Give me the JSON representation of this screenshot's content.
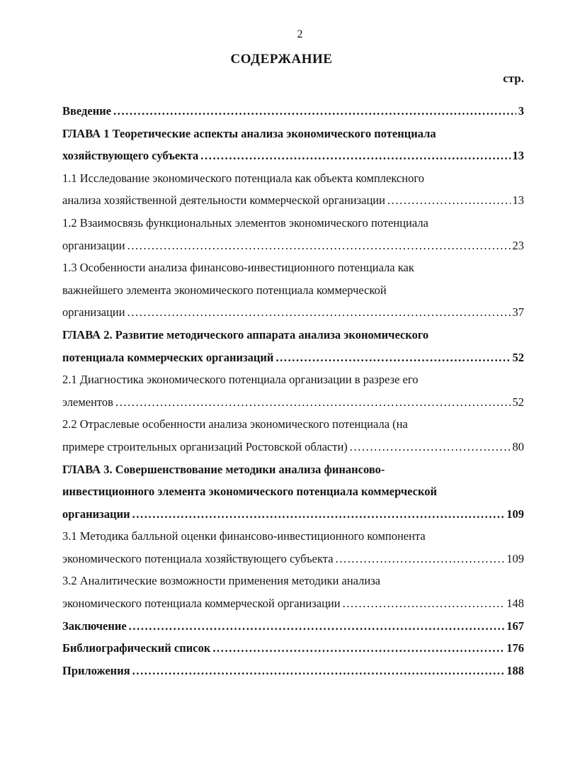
{
  "page": {
    "number": "2",
    "title": "СОДЕРЖАНИЕ",
    "column_label": "стр."
  },
  "colors": {
    "text": "#141414",
    "background": "#ffffff"
  },
  "toc": {
    "entries": [
      {
        "bold": true,
        "lines": [
          "Введение"
        ],
        "page": "3"
      },
      {
        "bold": true,
        "lines": [
          "ГЛАВА 1 Теоретические аспекты анализа экономического потенциала",
          "хозяйствующего субъекта"
        ],
        "page": "13"
      },
      {
        "bold": false,
        "lines": [
          "1.1 Исследование экономического потенциала как объекта комплексного",
          "анализа хозяйственной деятельности коммерческой организации"
        ],
        "page": "13"
      },
      {
        "bold": false,
        "lines": [
          "1.2 Взаимосвязь функциональных элементов экономического потенциала",
          "организации"
        ],
        "page": "23"
      },
      {
        "bold": false,
        "lines": [
          "1.3 Особенности анализа финансово-инвестиционного потенциала как",
          "важнейшего элемента экономического потенциала коммерческой",
          "организации"
        ],
        "page": "37"
      },
      {
        "bold": true,
        "lines": [
          "ГЛАВА 2. Развитие методического аппарата анализа экономического",
          "потенциала коммерческих организаций"
        ],
        "page": "52"
      },
      {
        "bold": false,
        "lines": [
          "2.1 Диагностика экономического потенциала организации в разрезе его",
          "элементов"
        ],
        "page": "52"
      },
      {
        "bold": false,
        "lines": [
          "2.2 Отраслевые особенности анализа экономического потенциала (на",
          "примере строительных организаций Ростовской области)"
        ],
        "page": "80"
      },
      {
        "bold": true,
        "lines": [
          "ГЛАВА 3. Совершенствование методики анализа финансово-",
          "инвестиционного элемента экономического потенциала коммерческой",
          "организации"
        ],
        "page": "109"
      },
      {
        "bold": false,
        "lines": [
          "3.1 Методика балльной оценки финансово-инвестиционного компонента",
          "экономического потенциала хозяйствующего субъекта"
        ],
        "page": "109"
      },
      {
        "bold": false,
        "lines": [
          "3.2 Аналитические возможности применения методики анализа",
          "экономического потенциала коммерческой организации"
        ],
        "page": "148"
      },
      {
        "bold": true,
        "lines": [
          "Заключение"
        ],
        "page": "167"
      },
      {
        "bold": true,
        "lines": [
          "Библиографический список"
        ],
        "page": "176"
      },
      {
        "bold": true,
        "lines": [
          "Приложения"
        ],
        "page": "188"
      }
    ]
  }
}
